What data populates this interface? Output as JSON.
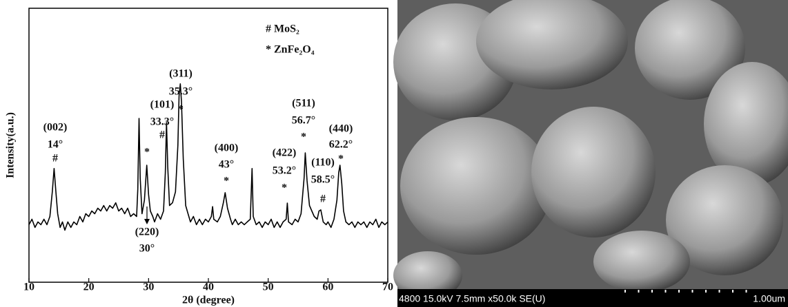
{
  "chart_data": {
    "type": "line",
    "x_label": "2θ (degree)",
    "y_label": "Intensity(a.u.)",
    "xlim": [
      10,
      70
    ],
    "xticks": [
      10,
      20,
      30,
      40,
      50,
      60,
      70
    ],
    "ylim": [
      0,
      100
    ],
    "color": "#000000",
    "x": [
      10,
      10.5,
      11,
      11.5,
      12,
      12.5,
      13,
      13.5,
      13.9,
      14.2,
      14.5,
      14.8,
      15.2,
      15.6,
      16,
      16.5,
      17,
      17.5,
      18,
      18.5,
      19,
      19.5,
      20,
      20.5,
      21,
      21.5,
      22,
      22.5,
      23,
      23.5,
      24,
      24.5,
      25,
      25.5,
      26,
      26.5,
      27,
      27.5,
      28,
      28.2,
      28.4,
      28.6,
      28.9,
      29.3,
      29.7,
      30,
      30.3,
      30.7,
      31,
      31.5,
      32,
      32.5,
      32.8,
      33,
      33.2,
      33.5,
      34,
      34.5,
      34.9,
      35.1,
      35.3,
      35.5,
      35.8,
      36.2,
      36.6,
      37,
      37.5,
      38,
      38.5,
      39,
      39.5,
      40,
      40.5,
      40.7,
      40.9,
      41.5,
      42,
      42.5,
      42.8,
      43.2,
      43.7,
      44,
      44.5,
      45,
      45.5,
      46,
      46.5,
      47,
      47.3,
      47.5,
      48,
      48.5,
      49,
      49.5,
      50,
      50.5,
      51,
      51.5,
      52,
      52.5,
      53,
      53.2,
      53.4,
      54,
      54.5,
      55,
      55.5,
      56,
      56.2,
      56.5,
      56.9,
      57.3,
      57.7,
      58.2,
      58.5,
      58.8,
      59.2,
      59.7,
      60,
      60.5,
      61,
      61.5,
      61.8,
      62,
      62.3,
      62.6,
      63,
      63.5,
      64,
      64.5,
      65,
      65.5,
      66,
      66.5,
      67,
      67.5,
      68,
      68.5,
      69,
      69.5,
      70
    ],
    "values": [
      21,
      23,
      20,
      22,
      21,
      23,
      21,
      24,
      33,
      41.5,
      33,
      25,
      20,
      22,
      19,
      22,
      20,
      22,
      21,
      24,
      22,
      25,
      24,
      26,
      25,
      27,
      26,
      28,
      26,
      28,
      27,
      29,
      26,
      27,
      25,
      27,
      24,
      25,
      24,
      34,
      59.8,
      38,
      25,
      30,
      42.7,
      32,
      26,
      24,
      22,
      25,
      23,
      26,
      40,
      58.3,
      42,
      28,
      29,
      33,
      50,
      68,
      72.4,
      66,
      45,
      28,
      25,
      22,
      24,
      21,
      23,
      21,
      23,
      22,
      24,
      27.6,
      23,
      22,
      24,
      29,
      32.7,
      27,
      23,
      21,
      23,
      21,
      22,
      21,
      22,
      23,
      41.5,
      24,
      21,
      22,
      20,
      22,
      21,
      23,
      20,
      22,
      20,
      22,
      23,
      28.9,
      22,
      21,
      23,
      22,
      25,
      38,
      47.2,
      37,
      28,
      26,
      24,
      23,
      26,
      26.4,
      22,
      21,
      22,
      20,
      23,
      30,
      40,
      42.7,
      36,
      26,
      22,
      21,
      22,
      20,
      22,
      21,
      22,
      20,
      22,
      21,
      23,
      20,
      22,
      21,
      22
    ],
    "annotations": [
      {
        "x": 14,
        "lines": [
          "(002)",
          "14°",
          "#"
        ]
      },
      {
        "x": 30,
        "lines": [
          "*",
          "(220)",
          "30°"
        ]
      },
      {
        "x": 33.3,
        "lines": [
          "(101)",
          "33.3°",
          "#"
        ]
      },
      {
        "x": 35.3,
        "lines": [
          "(311)",
          "35.3°",
          "*"
        ]
      },
      {
        "x": 43,
        "lines": [
          "(400)",
          "43°",
          "*"
        ]
      },
      {
        "x": 53.2,
        "lines": [
          "(422)",
          "53.2°",
          "*"
        ]
      },
      {
        "x": 56.7,
        "lines": [
          "(511)",
          "56.7°",
          "*"
        ]
      },
      {
        "x": 58.5,
        "lines": [
          "(110)",
          "58.5°",
          "#"
        ]
      },
      {
        "x": 62.2,
        "lines": [
          "(440)",
          "62.2°",
          "*"
        ]
      }
    ],
    "legend": [
      "# MoS₂",
      "* ZnFe₂O₄"
    ]
  },
  "sem_image": {
    "info": "4800 15.0kV 7.5mm x50.0k SE(U)",
    "scale_label": "1.00um"
  }
}
